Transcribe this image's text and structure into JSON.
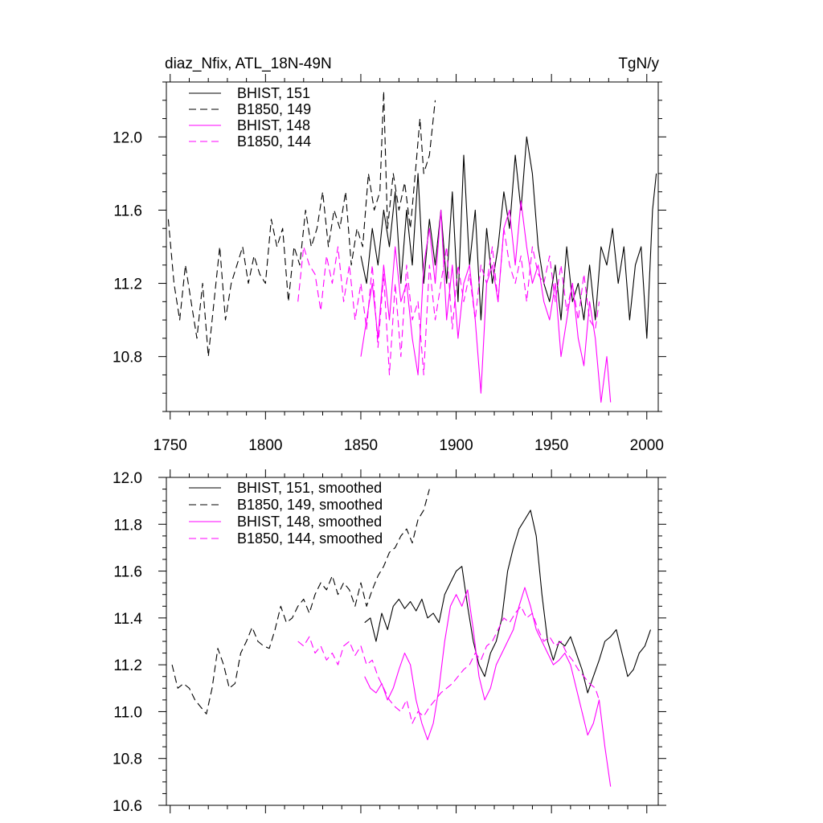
{
  "header": {
    "left_title": "diaz_Nfix, ATL_18N-49N",
    "right_title": "TgN/y"
  },
  "chart_data": [
    {
      "type": "line",
      "title": "diaz_Nfix, ATL_18N-49N",
      "units": "TgN/y",
      "xlim": [
        1748,
        2006
      ],
      "ylim": [
        10.5,
        12.3
      ],
      "xticks": [
        1750,
        1800,
        1850,
        1900,
        1950,
        2000
      ],
      "xtick_labels": [
        "1750",
        "1800",
        "1850",
        "1900",
        "1950",
        "2000"
      ],
      "yticks": [
        10.8,
        11.2,
        11.6,
        12.0
      ],
      "ytick_labels": [
        "10.8",
        "11.2",
        "11.6",
        "12.0"
      ],
      "grid": false,
      "legend_position": "top-left",
      "series": [
        {
          "name": "BHIST, 151",
          "color": "#000000",
          "dash": "solid",
          "x": [
            1850,
            1853,
            1856,
            1859,
            1862,
            1865,
            1868,
            1871,
            1874,
            1877,
            1880,
            1883,
            1886,
            1889,
            1892,
            1895,
            1898,
            1901,
            1904,
            1907,
            1910,
            1913,
            1916,
            1919,
            1922,
            1925,
            1928,
            1931,
            1934,
            1937,
            1940,
            1943,
            1946,
            1949,
            1952,
            1955,
            1958,
            1961,
            1964,
            1967,
            1970,
            1973,
            1976,
            1979,
            1982,
            1985,
            1988,
            1991,
            1994,
            1997,
            2000,
            2003,
            2005
          ],
          "y": [
            11.35,
            11.2,
            11.5,
            11.3,
            11.6,
            11.4,
            11.7,
            11.2,
            11.6,
            11.3,
            11.8,
            11.2,
            11.55,
            11.3,
            11.6,
            11.2,
            11.7,
            11.1,
            11.9,
            11.3,
            11.6,
            11.0,
            11.5,
            11.2,
            11.4,
            11.7,
            11.5,
            11.9,
            11.6,
            12.0,
            11.8,
            11.4,
            11.2,
            11.1,
            11.3,
            11.0,
            11.4,
            11.1,
            11.2,
            11.0,
            11.3,
            11.0,
            11.4,
            11.3,
            11.5,
            11.2,
            11.4,
            11.0,
            11.3,
            11.4,
            10.9,
            11.6,
            11.8
          ]
        },
        {
          "name": "B1850, 149",
          "color": "#000000",
          "dash": "dashed",
          "x": [
            1749,
            1752,
            1755,
            1758,
            1761,
            1764,
            1767,
            1770,
            1773,
            1776,
            1779,
            1782,
            1785,
            1788,
            1791,
            1794,
            1797,
            1800,
            1803,
            1806,
            1809,
            1812,
            1815,
            1818,
            1821,
            1824,
            1827,
            1830,
            1833,
            1836,
            1839,
            1842,
            1845,
            1848,
            1851,
            1854,
            1857,
            1860,
            1862,
            1864,
            1867,
            1870,
            1873,
            1876,
            1879,
            1881,
            1883,
            1886,
            1889
          ],
          "y": [
            11.55,
            11.2,
            11.0,
            11.3,
            11.1,
            10.9,
            11.2,
            10.8,
            11.1,
            11.4,
            11.0,
            11.2,
            11.3,
            11.4,
            11.2,
            11.35,
            11.25,
            11.2,
            11.55,
            11.4,
            11.5,
            11.1,
            11.4,
            11.3,
            11.6,
            11.4,
            11.5,
            11.7,
            11.4,
            11.6,
            11.5,
            11.7,
            11.3,
            11.5,
            11.4,
            11.8,
            11.6,
            11.7,
            12.25,
            11.5,
            11.8,
            11.6,
            11.75,
            11.5,
            11.85,
            12.1,
            11.8,
            11.9,
            12.2
          ]
        },
        {
          "name": "BHIST, 148",
          "color": "#ff00ff",
          "dash": "solid",
          "x": [
            1850,
            1853,
            1856,
            1859,
            1862,
            1865,
            1868,
            1871,
            1874,
            1877,
            1880,
            1883,
            1886,
            1889,
            1892,
            1895,
            1898,
            1901,
            1904,
            1907,
            1910,
            1913,
            1916,
            1919,
            1922,
            1925,
            1928,
            1931,
            1934,
            1937,
            1940,
            1943,
            1946,
            1949,
            1952,
            1955,
            1958,
            1961,
            1964,
            1967,
            1970,
            1973,
            1976,
            1979,
            1981
          ],
          "y": [
            10.8,
            11.0,
            11.2,
            10.9,
            11.3,
            11.0,
            11.4,
            11.1,
            11.2,
            10.9,
            10.7,
            11.3,
            11.5,
            11.2,
            11.6,
            11.0,
            11.3,
            10.9,
            11.2,
            11.3,
            11.0,
            10.6,
            11.2,
            11.3,
            11.1,
            11.5,
            11.6,
            11.3,
            11.65,
            11.4,
            11.2,
            11.3,
            11.1,
            11.0,
            11.2,
            10.8,
            11.0,
            11.2,
            10.9,
            10.75,
            11.1,
            10.9,
            10.55,
            10.8,
            10.55
          ]
        },
        {
          "name": "B1850, 144",
          "color": "#ff00ff",
          "dash": "dashed",
          "x": [
            1817,
            1820,
            1823,
            1826,
            1829,
            1832,
            1835,
            1838,
            1841,
            1844,
            1847,
            1850,
            1853,
            1856,
            1859,
            1862,
            1865,
            1868,
            1871,
            1874,
            1877,
            1880,
            1883,
            1886,
            1889,
            1892,
            1895,
            1898,
            1901,
            1904,
            1907,
            1910,
            1913,
            1916,
            1919,
            1922,
            1925,
            1928,
            1931,
            1934,
            1937,
            1940,
            1943,
            1946,
            1949,
            1952,
            1955,
            1958,
            1961,
            1964,
            1967,
            1970,
            1973,
            1975
          ],
          "y": [
            11.1,
            11.4,
            11.3,
            11.25,
            11.05,
            11.35,
            11.2,
            11.4,
            11.1,
            11.3,
            11.0,
            11.2,
            10.95,
            11.3,
            10.85,
            11.25,
            10.7,
            11.2,
            10.8,
            11.3,
            11.0,
            11.1,
            10.7,
            11.3,
            11.0,
            11.2,
            11.4,
            10.95,
            11.3,
            11.1,
            11.25,
            11.0,
            11.3,
            11.2,
            11.4,
            11.1,
            11.5,
            11.3,
            11.2,
            11.35,
            11.1,
            11.4,
            11.25,
            11.2,
            11.35,
            11.1,
            11.3,
            11.05,
            11.2,
            11.0,
            11.25,
            11.0,
            10.95,
            11.1
          ]
        }
      ]
    },
    {
      "type": "line",
      "xlim": [
        1748,
        2006
      ],
      "ylim": [
        10.6,
        12.0
      ],
      "xticks": [
        1750,
        1800,
        1850,
        1900,
        1950,
        2000
      ],
      "yticks": [
        10.6,
        10.8,
        11.0,
        11.2,
        11.4,
        11.6,
        11.8,
        12.0
      ],
      "ytick_labels": [
        "10.6",
        "10.8",
        "11.0",
        "11.2",
        "11.4",
        "11.6",
        "11.8",
        "12.0"
      ],
      "grid": false,
      "legend_position": "top-left",
      "series": [
        {
          "name": "BHIST, 151, smoothed",
          "color": "#000000",
          "dash": "solid",
          "x": [
            1852,
            1855,
            1858,
            1861,
            1864,
            1867,
            1870,
            1873,
            1876,
            1879,
            1882,
            1885,
            1888,
            1891,
            1894,
            1897,
            1900,
            1903,
            1906,
            1909,
            1912,
            1915,
            1918,
            1921,
            1924,
            1927,
            1930,
            1933,
            1936,
            1939,
            1942,
            1945,
            1948,
            1951,
            1954,
            1957,
            1960,
            1963,
            1966,
            1969,
            1972,
            1975,
            1978,
            1981,
            1984,
            1987,
            1990,
            1993,
            1996,
            1999,
            2002
          ],
          "y": [
            11.38,
            11.4,
            11.3,
            11.42,
            11.35,
            11.45,
            11.48,
            11.44,
            11.47,
            11.43,
            11.48,
            11.4,
            11.42,
            11.38,
            11.5,
            11.55,
            11.6,
            11.62,
            11.45,
            11.3,
            11.2,
            11.15,
            11.25,
            11.3,
            11.4,
            11.6,
            11.7,
            11.78,
            11.82,
            11.86,
            11.75,
            11.5,
            11.3,
            11.22,
            11.3,
            11.28,
            11.32,
            11.25,
            11.18,
            11.08,
            11.15,
            11.22,
            11.3,
            11.32,
            11.35,
            11.25,
            11.15,
            11.18,
            11.25,
            11.28,
            11.35
          ]
        },
        {
          "name": "B1850, 149, smoothed",
          "color": "#000000",
          "dash": "dashed",
          "x": [
            1751,
            1754,
            1757,
            1760,
            1763,
            1766,
            1769,
            1772,
            1775,
            1778,
            1781,
            1784,
            1787,
            1790,
            1793,
            1796,
            1799,
            1802,
            1805,
            1808,
            1811,
            1814,
            1817,
            1820,
            1823,
            1826,
            1829,
            1832,
            1835,
            1838,
            1841,
            1844,
            1847,
            1850,
            1853,
            1856,
            1859,
            1862,
            1865,
            1868,
            1871,
            1874,
            1877,
            1880,
            1883,
            1886
          ],
          "y": [
            11.2,
            11.1,
            11.12,
            11.1,
            11.05,
            11.02,
            10.99,
            11.1,
            11.27,
            11.2,
            11.1,
            11.12,
            11.25,
            11.3,
            11.36,
            11.3,
            11.28,
            11.27,
            11.35,
            11.45,
            11.38,
            11.4,
            11.45,
            11.48,
            11.42,
            11.5,
            11.55,
            11.52,
            11.58,
            11.5,
            11.55,
            11.52,
            11.45,
            11.55,
            11.45,
            11.52,
            11.58,
            11.62,
            11.68,
            11.7,
            11.75,
            11.78,
            11.72,
            11.82,
            11.86,
            11.95
          ]
        },
        {
          "name": "BHIST, 148, smoothed",
          "color": "#ff00ff",
          "dash": "solid",
          "x": [
            1852,
            1855,
            1858,
            1861,
            1864,
            1867,
            1870,
            1873,
            1876,
            1879,
            1882,
            1885,
            1888,
            1891,
            1894,
            1897,
            1900,
            1903,
            1906,
            1909,
            1912,
            1915,
            1918,
            1921,
            1924,
            1927,
            1930,
            1933,
            1936,
            1939,
            1942,
            1945,
            1948,
            1951,
            1954,
            1957,
            1960,
            1963,
            1966,
            1969,
            1972,
            1975,
            1978,
            1981
          ],
          "y": [
            11.15,
            11.1,
            11.08,
            11.12,
            11.05,
            11.1,
            11.18,
            11.25,
            11.2,
            11.05,
            10.95,
            10.88,
            10.95,
            11.1,
            11.3,
            11.45,
            11.5,
            11.45,
            11.52,
            11.35,
            11.15,
            11.05,
            11.1,
            11.2,
            11.25,
            11.3,
            11.35,
            11.45,
            11.53,
            11.45,
            11.35,
            11.3,
            11.25,
            11.2,
            11.22,
            11.25,
            11.2,
            11.1,
            11.0,
            10.9,
            10.95,
            11.05,
            10.85,
            10.68
          ]
        },
        {
          "name": "B1850, 144, smoothed",
          "color": "#ff00ff",
          "dash": "dashed",
          "x": [
            1817,
            1820,
            1823,
            1826,
            1829,
            1832,
            1835,
            1838,
            1841,
            1844,
            1847,
            1850,
            1853,
            1856,
            1859,
            1862,
            1865,
            1868,
            1871,
            1874,
            1877,
            1880,
            1883,
            1886,
            1889,
            1892,
            1895,
            1898,
            1901,
            1904,
            1907,
            1910,
            1913,
            1916,
            1919,
            1922,
            1925,
            1928,
            1931,
            1934,
            1937,
            1940,
            1943,
            1946,
            1949,
            1952,
            1955,
            1958,
            1961,
            1964,
            1967,
            1970,
            1973,
            1975
          ],
          "y": [
            11.3,
            11.28,
            11.32,
            11.25,
            11.28,
            11.22,
            11.25,
            11.2,
            11.28,
            11.3,
            11.24,
            11.28,
            11.2,
            11.22,
            11.15,
            11.1,
            11.05,
            11.02,
            11.0,
            11.05,
            10.95,
            11.0,
            10.98,
            11.02,
            11.05,
            11.08,
            11.1,
            11.12,
            11.15,
            11.18,
            11.2,
            11.25,
            11.22,
            11.28,
            11.3,
            11.35,
            11.4,
            11.38,
            11.42,
            11.45,
            11.4,
            11.42,
            11.35,
            11.3,
            11.32,
            11.28,
            11.3,
            11.25,
            11.22,
            11.18,
            11.15,
            11.12,
            11.1,
            11.05
          ]
        }
      ]
    }
  ]
}
